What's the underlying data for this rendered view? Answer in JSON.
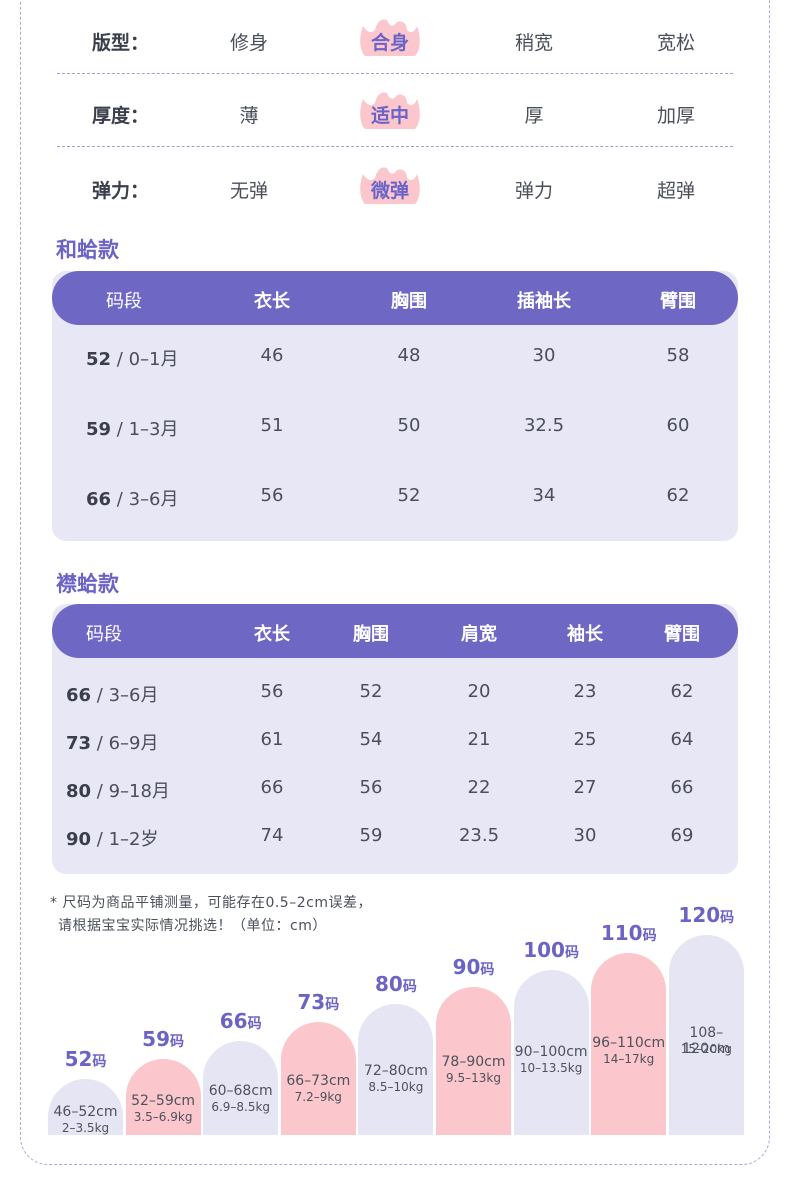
{
  "attributes": [
    {
      "label": "版型：",
      "options": [
        "修身",
        "合身",
        "稍宽",
        "宽松"
      ],
      "selected": 1
    },
    {
      "label": "厚度：",
      "options": [
        "薄",
        "适中",
        "厚",
        "加厚"
      ],
      "selected": 1
    },
    {
      "label": "弹力：",
      "options": [
        "无弹",
        "微弹",
        "弹力",
        "超弹"
      ],
      "selected": 1
    }
  ],
  "table1": {
    "title": "和蛤款",
    "headers": [
      "码段",
      "衣长",
      "胸围",
      "插袖长",
      "臂围"
    ],
    "rows": [
      {
        "code": "52",
        "age": " / 0–1月",
        "values": [
          "46",
          "48",
          "30",
          "58"
        ]
      },
      {
        "code": "59",
        "age": " / 1–3月",
        "values": [
          "51",
          "50",
          "32.5",
          "60"
        ]
      },
      {
        "code": "66",
        "age": " / 3–6月",
        "values": [
          "56",
          "52",
          "34",
          "62"
        ]
      }
    ]
  },
  "table2": {
    "title": "襟蛤款",
    "headers": [
      "码段",
      "衣长",
      "胸围",
      "肩宽",
      "袖长",
      "臂围"
    ],
    "rows": [
      {
        "code": "66",
        "age": " / 3–6月",
        "values": [
          "56",
          "52",
          "20",
          "23",
          "62"
        ]
      },
      {
        "code": "73",
        "age": " / 6–9月",
        "values": [
          "61",
          "54",
          "21",
          "25",
          "64"
        ]
      },
      {
        "code": "80",
        "age": " / 9–18月",
        "values": [
          "66",
          "56",
          "22",
          "27",
          "66"
        ]
      },
      {
        "code": "90",
        "age": " / 1–2岁",
        "values": [
          "74",
          "59",
          "23.5",
          "30",
          "69"
        ]
      }
    ]
  },
  "notes": {
    "line1": "* 尺码为商品平铺测量，可能存在0.5–2cm误差，",
    "line2": "请根据宝宝实际情况挑选！（单位：cm）"
  },
  "size_chart": {
    "unit": "码",
    "items": [
      {
        "size": "52",
        "height": "46–52cm",
        "weight": "2–3.5kg",
        "color": "grey"
      },
      {
        "size": "59",
        "height": "52–59cm",
        "weight": "3.5–6.9kg",
        "color": "pink"
      },
      {
        "size": "66",
        "height": "60–68cm",
        "weight": "6.9–8.5kg",
        "color": "grey"
      },
      {
        "size": "73",
        "height": "66–73cm",
        "weight": "7.2–9kg",
        "color": "pink"
      },
      {
        "size": "80",
        "height": "72–80cm",
        "weight": "8.5–10kg",
        "color": "grey"
      },
      {
        "size": "90",
        "height": "78–90cm",
        "weight": "9.5–13kg",
        "color": "pink"
      },
      {
        "size": "100",
        "height": "90–100cm",
        "weight": "10–13.5kg",
        "color": "grey"
      },
      {
        "size": "110",
        "height": "96–110cm",
        "weight": "14–17kg",
        "color": "pink"
      },
      {
        "size": "120",
        "height": "108–120cm",
        "weight": "15–20kg",
        "color": "grey"
      }
    ]
  },
  "colors": {
    "accent": "#6e67c3",
    "title": "#6b64c4",
    "badge": "#fbc6cc"
  }
}
